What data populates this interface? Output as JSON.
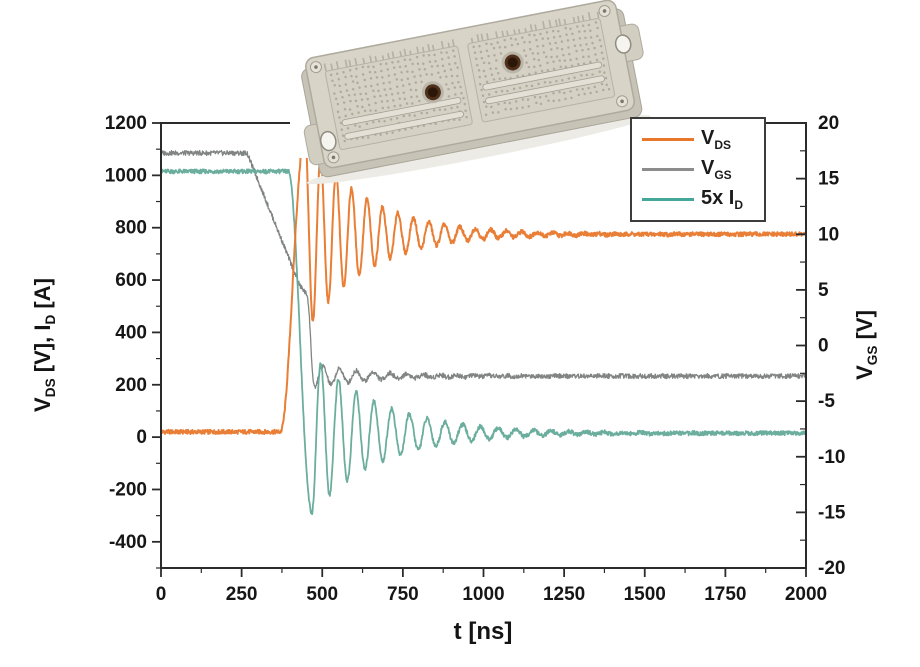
{
  "figure": {
    "description": "Turn-off switching waveforms of a power semiconductor module with inset module photo",
    "background": "#ffffff",
    "box_color": "#2b2b2b",
    "text_color": "#161616"
  },
  "axis_labels": {
    "left": {
      "p1": "V",
      "s1": "DS",
      "p2": " [V], I",
      "s2": "D",
      "p3": " [A]"
    },
    "right": {
      "p1": "V",
      "s1": "GS",
      "p2": " [V]"
    },
    "x": {
      "p1": "t [ns]"
    }
  },
  "legend": {
    "items": [
      {
        "main": "V",
        "sub": "DS",
        "color": "#e8772b"
      },
      {
        "main": "V",
        "sub": "GS",
        "color": "#8c8c8c"
      },
      {
        "main": "5x I",
        "sub": "D",
        "color": "#45a79a"
      }
    ]
  },
  "module_photo": {
    "body_color": "#d8d4c8",
    "base_color": "#c7c3b7",
    "field_color": "#d5d1c5",
    "dot_color": "#a9a599",
    "hole_color": "#4f2e1a",
    "hole_inner": "#2b1708",
    "groove_color": "#e4e0d5",
    "ear_hole_color": "#f6f4ee"
  },
  "chart_data": {
    "type": "line",
    "title": "",
    "x_axis": {
      "label": "t [ns]",
      "range": [
        0,
        2000
      ],
      "major_ticks": [
        0,
        250,
        500,
        750,
        1000,
        1250,
        1500,
        1750,
        2000
      ],
      "minor_step": 125
    },
    "left_axis": {
      "label": "V_DS [V], I_D [A]",
      "range": [
        -500,
        1200
      ],
      "major_ticks": [
        -400,
        -200,
        0,
        200,
        400,
        600,
        800,
        1000,
        1200
      ],
      "minor_step": 100
    },
    "right_axis": {
      "label": "V_GS [V]",
      "range": [
        -20,
        20
      ],
      "major_ticks": [
        -20,
        -15,
        -10,
        -5,
        0,
        5,
        10,
        15,
        20
      ],
      "minor_step": 2.5
    },
    "legend_position": "top-right-inside",
    "grid": false,
    "readout": {
      "V_DS": {
        "on_state_V": 20,
        "rise_start_ns": 370,
        "peak_V": 1150,
        "peak_ns": 447,
        "ringing_period_ns": 48,
        "settled_V": 775
      },
      "V_GS": {
        "high_V": 17.3,
        "fall_start_ns": 267,
        "miller_plateau_V": 5,
        "undershoot_V": -3.8,
        "settled_V": -2.7
      },
      "5x_I_D": {
        "initial": 1015,
        "fall_start_ns": 395,
        "undershoot": -290,
        "ringing_period_ns": 55,
        "settled": 15
      }
    },
    "series": [
      {
        "name": "V_GS",
        "axis": "right",
        "color": "#797e7c",
        "width": 1.3,
        "noise": 0.22,
        "seed": 3,
        "key_points": [
          [
            0,
            17.3
          ],
          [
            267,
            17.3
          ],
          [
            430,
            5.4
          ],
          [
            452,
            4.6
          ],
          [
            476,
            -3.8
          ],
          [
            2000,
            -2.7
          ]
        ],
        "segments": [
          {
            "type": "flat",
            "t1": 267,
            "v": 17.3
          },
          {
            "type": "linear",
            "t1": 430,
            "to": 5.4
          },
          {
            "type": "linear",
            "t1": 452,
            "to": 4.6
          },
          {
            "type": "ease",
            "t1": 476,
            "to": -3.8
          },
          {
            "type": "ring",
            "t1": 2000,
            "base": -2.75,
            "amp": 1.05,
            "tau": 170,
            "period": 52,
            "phase": 3.14159
          }
        ]
      },
      {
        "type_note": "5 x drain current, plotted on left axis",
        "name": "5x I_D",
        "axis": "left",
        "color": "#64aa99",
        "width": 1.8,
        "noise": 8,
        "seed": 2,
        "key_points": [
          [
            0,
            1015
          ],
          [
            395,
            1015
          ],
          [
            468,
            -290
          ],
          [
            2000,
            15
          ]
        ],
        "segments": [
          {
            "type": "flat",
            "t1": 395,
            "v": 1015
          },
          {
            "type": "ease",
            "t1": 468,
            "to": -290
          },
          {
            "type": "ring",
            "t1": 2000,
            "base": 15,
            "amp": 305,
            "tau": 210,
            "period": 55,
            "phase": 3.14159
          }
        ]
      },
      {
        "name": "V_DS",
        "axis": "left",
        "color": "#e8772b",
        "width": 2.0,
        "noise": 8,
        "seed": 1,
        "key_points": [
          [
            0,
            20
          ],
          [
            370,
            20
          ],
          [
            447,
            1155
          ],
          [
            2000,
            775
          ]
        ],
        "segments": [
          {
            "type": "flat",
            "t1": 370,
            "v": 20
          },
          {
            "type": "ease",
            "t1": 447,
            "to": 1155
          },
          {
            "type": "ring",
            "t1": 2000,
            "base": 775,
            "amp": 380,
            "tau": 185,
            "period": 48,
            "phase": 0
          }
        ]
      }
    ]
  }
}
